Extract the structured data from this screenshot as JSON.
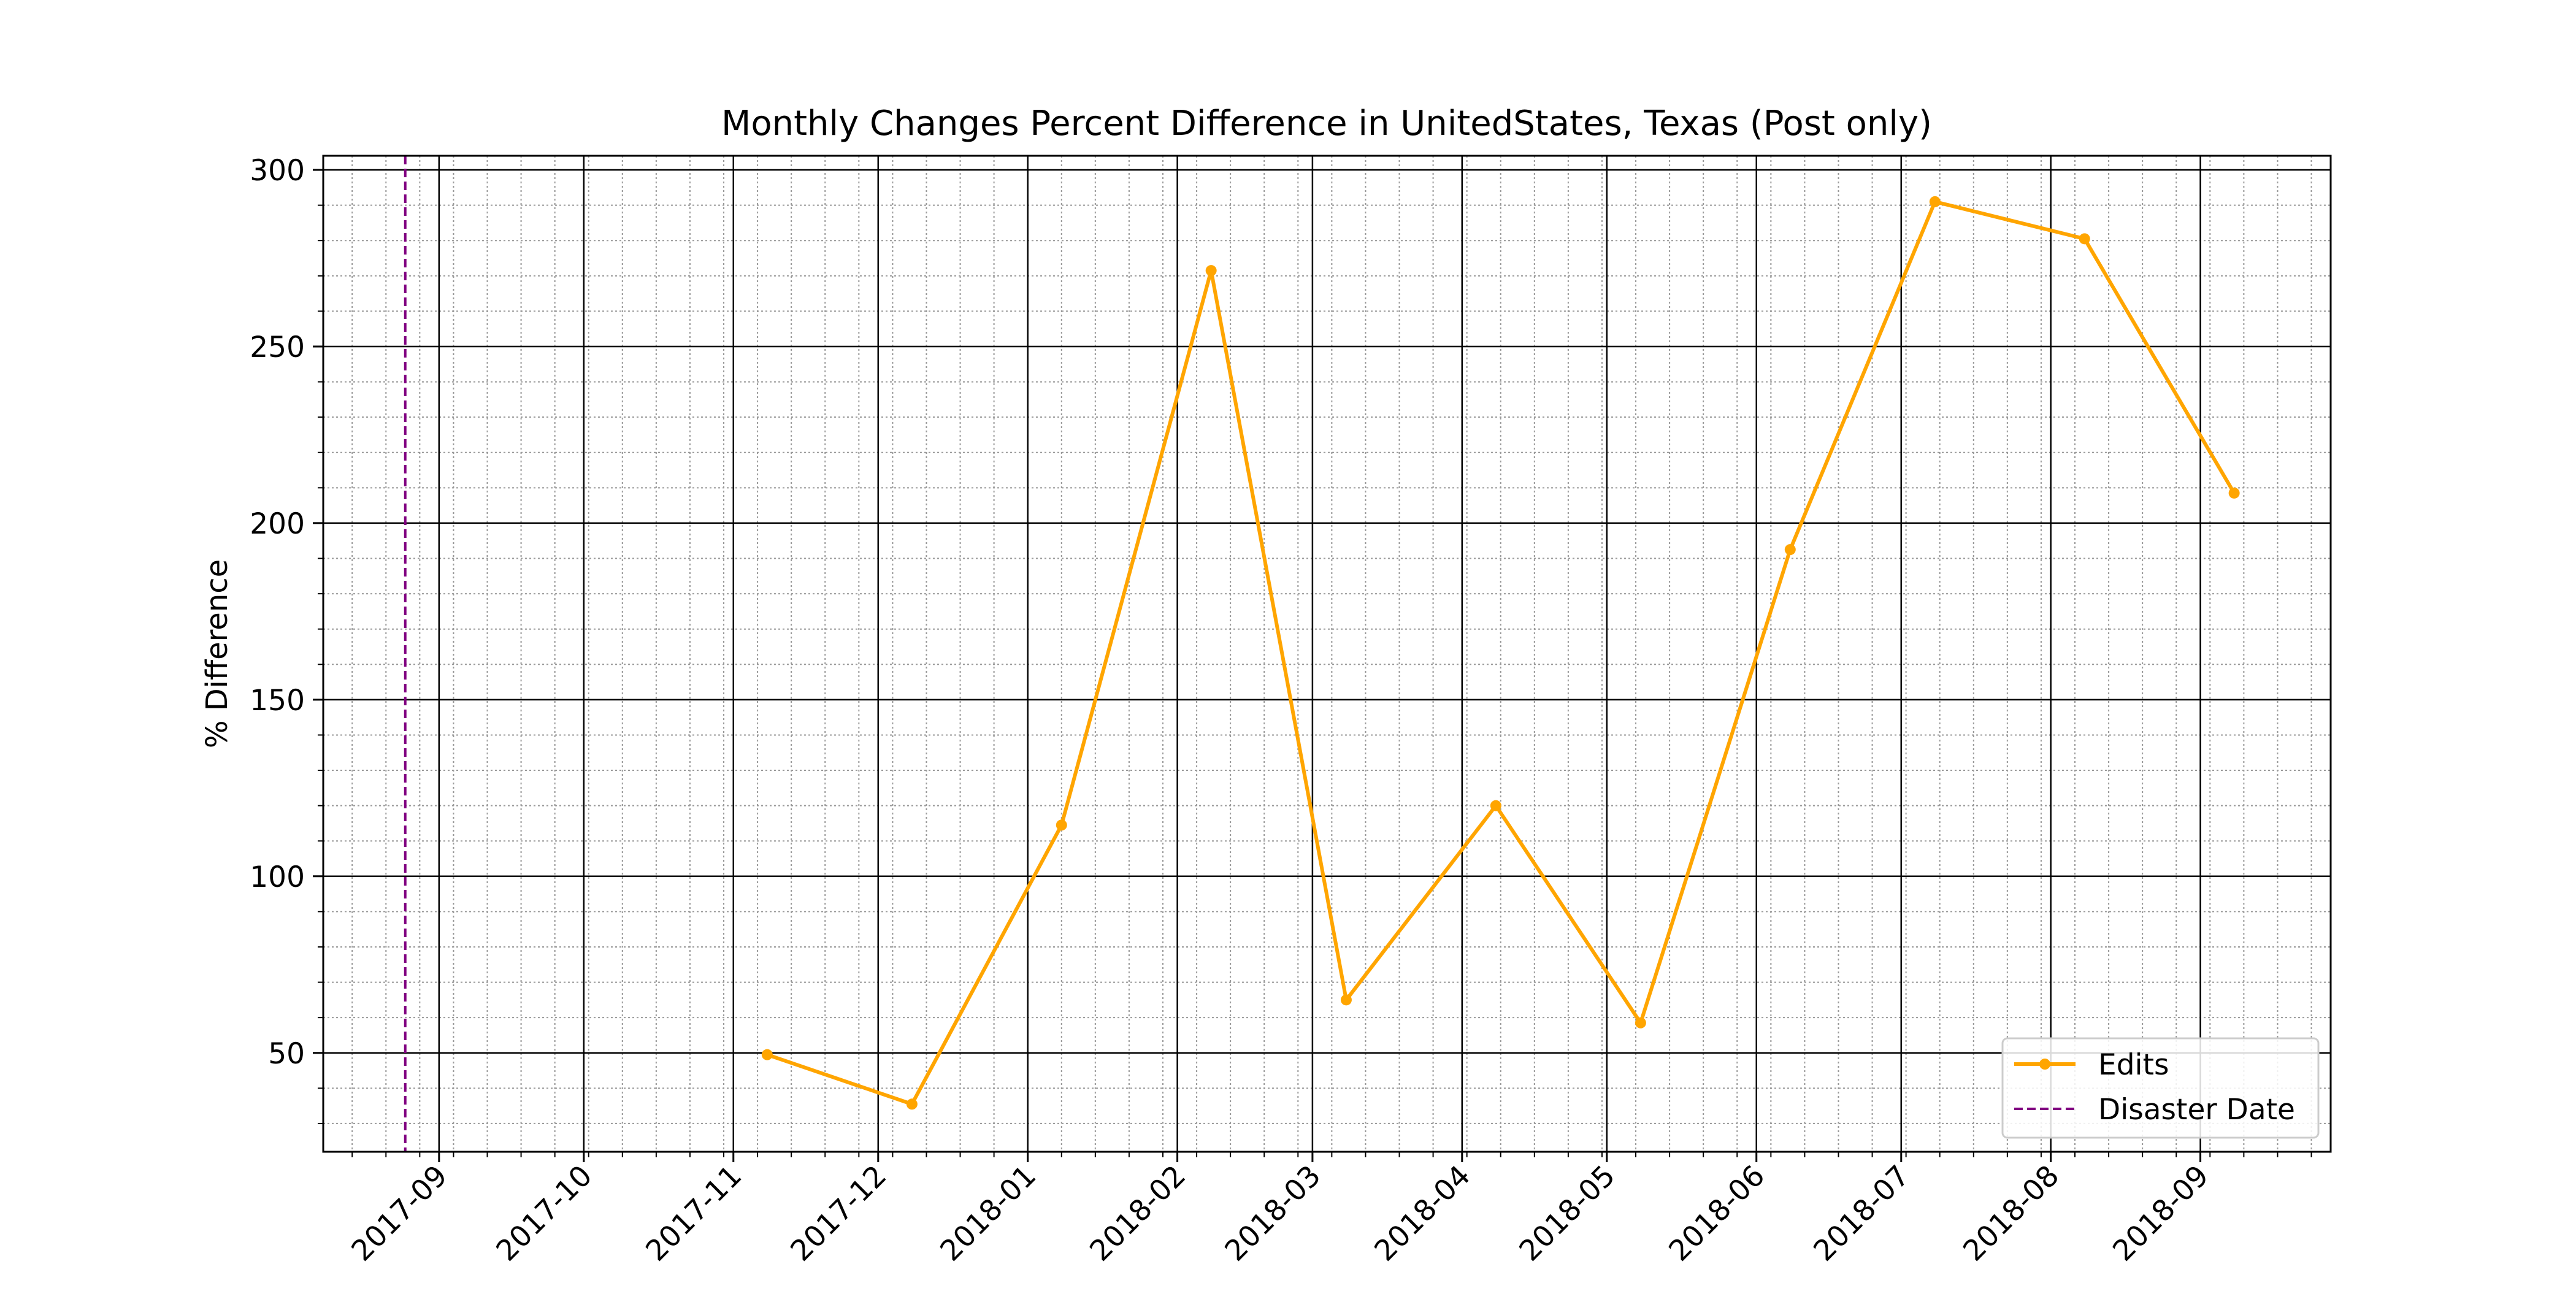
{
  "chart_data": {
    "type": "line",
    "title": "Monthly Changes Percent Difference in UnitedStates, Texas (Post only)",
    "xlabel": "",
    "ylabel": "% Difference",
    "x_type": "date",
    "xlim": [
      "2017-08-08",
      "2018-09-28"
    ],
    "ylim": [
      22,
      304
    ],
    "x_ticks": [
      "2017-09",
      "2017-10",
      "2017-11",
      "2017-12",
      "2018-01",
      "2018-02",
      "2018-03",
      "2018-04",
      "2018-05",
      "2018-06",
      "2018-07",
      "2018-08",
      "2018-09"
    ],
    "y_ticks": [
      50,
      100,
      150,
      200,
      250,
      300
    ],
    "grid": true,
    "minor_grid": true,
    "legend_position": "lower right",
    "series": [
      {
        "name": "Edits",
        "color": "#ffa500",
        "marker": "circle",
        "x": [
          "2017-11-08",
          "2017-12-08",
          "2018-01-08",
          "2018-02-08",
          "2018-03-08",
          "2018-04-08",
          "2018-05-08",
          "2018-06-08",
          "2018-07-08",
          "2018-08-08",
          "2018-09-08"
        ],
        "values": [
          49.5,
          35.5,
          114.5,
          271.5,
          65,
          120,
          58.5,
          192.5,
          291,
          280.5,
          208.5
        ]
      }
    ],
    "vlines": [
      {
        "name": "Disaster Date",
        "x": "2017-08-25",
        "color": "#800080",
        "style": "dashed"
      }
    ]
  }
}
